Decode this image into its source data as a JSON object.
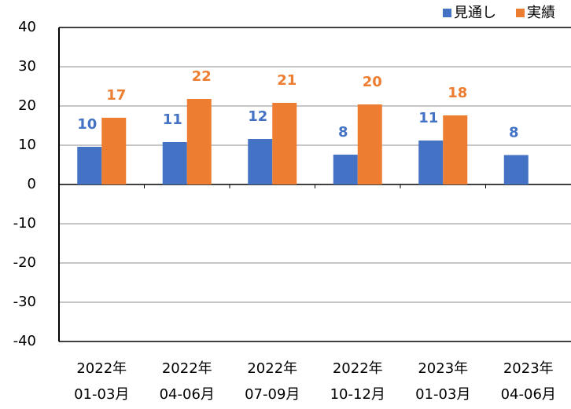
{
  "chart_data": {
    "type": "bar",
    "categories": [
      [
        "2022年",
        "01-03月"
      ],
      [
        "2022年",
        "04-06月"
      ],
      [
        "2022年",
        "07-09月"
      ],
      [
        "2022年",
        "10-12月"
      ],
      [
        "2023年",
        "01-03月"
      ],
      [
        "2023年",
        "04-06月"
      ]
    ],
    "series": [
      {
        "name": "見通し",
        "color": "#4472c4",
        "values": [
          9.6,
          10.8,
          11.6,
          7.6,
          11.2,
          7.5
        ],
        "value_labels": [
          "10",
          "11",
          "12",
          "8",
          "11",
          "8"
        ]
      },
      {
        "name": "実績",
        "color": "#ed7d31",
        "values": [
          17,
          21.8,
          20.8,
          20.4,
          17.6,
          null
        ],
        "value_labels": [
          "17",
          "22",
          "21",
          "20",
          "18",
          null
        ]
      }
    ],
    "ylim": [
      -40,
      40
    ],
    "yticks": [
      -40,
      -30,
      -20,
      -10,
      0,
      10,
      20,
      30,
      40
    ],
    "grid": true,
    "legend": "top-right"
  }
}
